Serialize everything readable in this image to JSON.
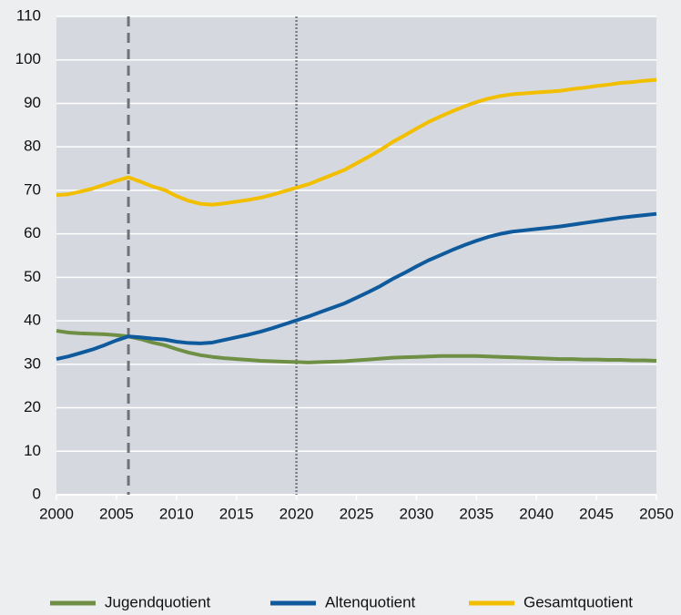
{
  "chart_data": {
    "type": "line",
    "x": [
      2000,
      2001,
      2002,
      2003,
      2004,
      2005,
      2006,
      2007,
      2008,
      2009,
      2010,
      2011,
      2012,
      2013,
      2014,
      2015,
      2016,
      2017,
      2018,
      2019,
      2020,
      2021,
      2022,
      2023,
      2024,
      2025,
      2026,
      2027,
      2028,
      2029,
      2030,
      2031,
      2032,
      2033,
      2034,
      2035,
      2036,
      2037,
      2038,
      2039,
      2040,
      2041,
      2042,
      2043,
      2044,
      2045,
      2046,
      2047,
      2048,
      2049,
      2050
    ],
    "series": [
      {
        "name": "Jugendquotient",
        "color": "#6f8f45",
        "values": [
          37.7,
          37.3,
          37.1,
          37.0,
          36.9,
          36.7,
          36.4,
          35.8,
          35.0,
          34.4,
          33.5,
          32.7,
          32.1,
          31.7,
          31.4,
          31.2,
          31.0,
          30.8,
          30.7,
          30.6,
          30.5,
          30.4,
          30.5,
          30.6,
          30.7,
          30.9,
          31.1,
          31.3,
          31.5,
          31.6,
          31.7,
          31.8,
          31.9,
          31.9,
          31.9,
          31.9,
          31.8,
          31.7,
          31.6,
          31.5,
          31.4,
          31.3,
          31.2,
          31.2,
          31.1,
          31.1,
          31.0,
          31.0,
          30.9,
          30.9,
          30.8
        ]
      },
      {
        "name": "Altenquotient",
        "color": "#0e5a9c",
        "values": [
          31.2,
          31.8,
          32.6,
          33.4,
          34.4,
          35.5,
          36.4,
          36.2,
          35.9,
          35.7,
          35.2,
          34.9,
          34.8,
          35.0,
          35.6,
          36.2,
          36.8,
          37.5,
          38.3,
          39.2,
          40.1,
          41.0,
          42.0,
          43.0,
          44.0,
          45.3,
          46.6,
          48.0,
          49.6,
          51.0,
          52.5,
          53.9,
          55.1,
          56.3,
          57.4,
          58.4,
          59.3,
          60.0,
          60.5,
          60.8,
          61.1,
          61.4,
          61.7,
          62.1,
          62.5,
          62.9,
          63.3,
          63.7,
          64.0,
          64.3,
          64.6
        ]
      },
      {
        "name": "Gesamtquotient",
        "color": "#f2bf00",
        "values": [
          68.9,
          69.1,
          69.7,
          70.4,
          71.3,
          72.2,
          73.0,
          72.0,
          70.9,
          70.1,
          68.7,
          67.6,
          66.9,
          66.7,
          67.0,
          67.4,
          67.8,
          68.3,
          69.0,
          69.8,
          70.6,
          71.4,
          72.5,
          73.6,
          74.7,
          76.2,
          77.7,
          79.3,
          81.1,
          82.6,
          84.2,
          85.7,
          87.0,
          88.2,
          89.3,
          90.3,
          91.1,
          91.7,
          92.1,
          92.3,
          92.5,
          92.7,
          92.9,
          93.3,
          93.6,
          94.0,
          94.3,
          94.7,
          94.9,
          95.2,
          95.4
        ]
      }
    ],
    "xlim": [
      2000,
      2050
    ],
    "xticks": [
      2000,
      2005,
      2010,
      2015,
      2020,
      2025,
      2030,
      2035,
      2040,
      2045,
      2050
    ],
    "ylim": [
      0,
      110
    ],
    "yticks": [
      0,
      10,
      20,
      30,
      40,
      50,
      60,
      70,
      80,
      90,
      100,
      110
    ],
    "grid": true,
    "legend": "bottom",
    "vlines": [
      {
        "x": 2006,
        "style": "dashed"
      },
      {
        "x": 2020,
        "style": "dotted"
      }
    ]
  }
}
